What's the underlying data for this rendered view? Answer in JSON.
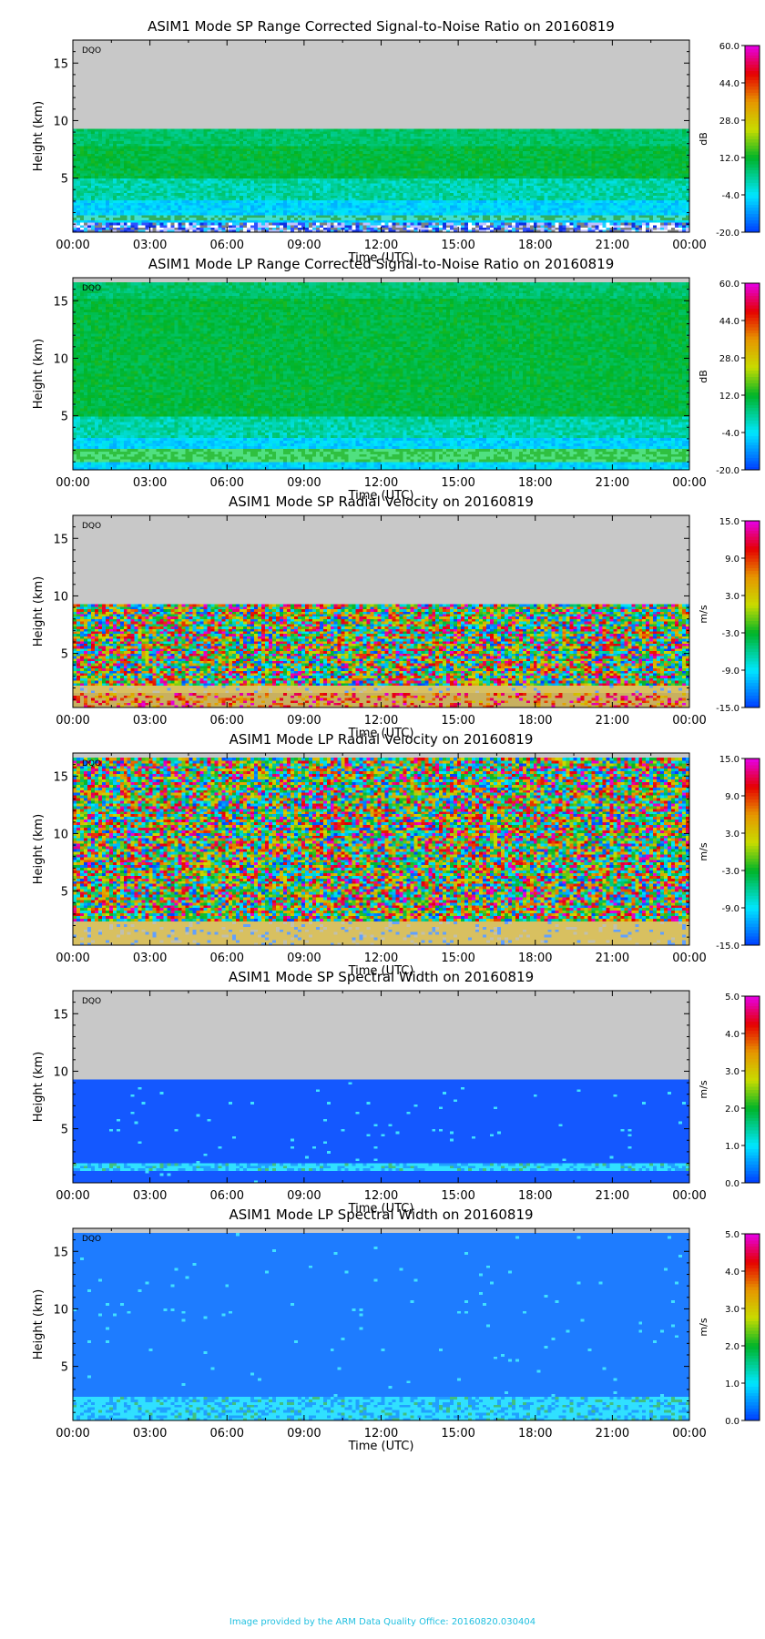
{
  "x_tick_labels": [
    "00:00",
    "03:00",
    "06:00",
    "09:00",
    "12:00",
    "15:00",
    "18:00",
    "21:00",
    "00:00"
  ],
  "footer_text": "Image provided by the ARM Data Quality Office: 20160820.030404",
  "chart_data": [
    {
      "type": "heatmap",
      "title": "ASIM1 Mode SP Range Corrected Signal-to-Noise Ratio on 20160819",
      "xlabel": "Time (UTC)",
      "ylabel": "Height (km)",
      "xlim": [
        0,
        24
      ],
      "ylim": [
        0.3,
        17
      ],
      "y_ticks": [
        5,
        10,
        15
      ],
      "y_tick_labels": [
        "5",
        "10",
        "15"
      ],
      "colorbar": {
        "unit": "dB",
        "ticks": [
          "60.0",
          "44.0",
          "28.0",
          "12.0",
          "-4.0",
          "-20.0"
        ],
        "range": [
          -20,
          60
        ]
      },
      "flag_label": "DQO",
      "data_top_km": 9.3,
      "field": "snr_sp"
    },
    {
      "type": "heatmap",
      "title": "ASIM1 Mode LP Range Corrected Signal-to-Noise Ratio on 20160819",
      "xlabel": "Time (UTC)",
      "ylabel": "Height (km)",
      "xlim": [
        0,
        24
      ],
      "ylim": [
        0.3,
        17
      ],
      "y_ticks": [
        5,
        10,
        15
      ],
      "y_tick_labels": [
        "5",
        "10",
        "15"
      ],
      "colorbar": {
        "unit": "dB",
        "ticks": [
          "60.0",
          "44.0",
          "28.0",
          "12.0",
          "-4.0",
          "-20.0"
        ],
        "range": [
          -20,
          60
        ]
      },
      "flag_label": "DQO",
      "data_top_km": 16.6,
      "field": "snr_lp"
    },
    {
      "type": "heatmap",
      "title": "ASIM1 Mode SP Radial Velocity  on 20160819",
      "xlabel": "Time (UTC)",
      "ylabel": "Height (km)",
      "xlim": [
        0,
        24
      ],
      "ylim": [
        0.3,
        17
      ],
      "y_ticks": [
        5,
        10,
        15
      ],
      "y_tick_labels": [
        "5",
        "10",
        "15"
      ],
      "colorbar": {
        "unit": "m/s",
        "ticks": [
          "15.0",
          "9.0",
          "3.0",
          "-3.0",
          "-9.0",
          "-15.0"
        ],
        "range": [
          -15,
          15
        ]
      },
      "flag_label": "DQO",
      "data_top_km": 9.3,
      "field": "vel_sp"
    },
    {
      "type": "heatmap",
      "title": "ASIM1 Mode LP Radial Velocity  on 20160819",
      "xlabel": "Time (UTC)",
      "ylabel": "Height (km)",
      "xlim": [
        0,
        24
      ],
      "ylim": [
        0.3,
        17
      ],
      "y_ticks": [
        5,
        10,
        15
      ],
      "y_tick_labels": [
        "5",
        "10",
        "15"
      ],
      "colorbar": {
        "unit": "m/s",
        "ticks": [
          "15.0",
          "9.0",
          "3.0",
          "-3.0",
          "-9.0",
          "-15.0"
        ],
        "range": [
          -15,
          15
        ]
      },
      "flag_label": "DQO",
      "data_top_km": 16.6,
      "field": "vel_lp"
    },
    {
      "type": "heatmap",
      "title": "ASIM1 Mode SP Spectral Width  on 20160819",
      "xlabel": "Time (UTC)",
      "ylabel": "Height (km)",
      "xlim": [
        0,
        24
      ],
      "ylim": [
        0.3,
        17
      ],
      "y_ticks": [
        5,
        10,
        15
      ],
      "y_tick_labels": [
        "5",
        "10",
        "15"
      ],
      "colorbar": {
        "unit": "m/s",
        "ticks": [
          "5.0",
          "4.0",
          "3.0",
          "2.0",
          "1.0",
          "0.0"
        ],
        "range": [
          0,
          5
        ]
      },
      "flag_label": "DQO",
      "data_top_km": 9.3,
      "field": "sw_sp"
    },
    {
      "type": "heatmap",
      "title": "ASIM1 Mode LP Spectral Width  on 20160819",
      "xlabel": "Time (UTC)",
      "ylabel": "Height (km)",
      "xlim": [
        0,
        24
      ],
      "ylim": [
        0.3,
        17
      ],
      "y_ticks": [
        5,
        10,
        15
      ],
      "y_tick_labels": [
        "5",
        "10",
        "15"
      ],
      "colorbar": {
        "unit": "m/s",
        "ticks": [
          "5.0",
          "4.0",
          "3.0",
          "2.0",
          "1.0",
          "0.0"
        ],
        "range": [
          0,
          5
        ]
      },
      "flag_label": "DQO",
      "data_top_km": 16.6,
      "field": "sw_lp"
    }
  ]
}
